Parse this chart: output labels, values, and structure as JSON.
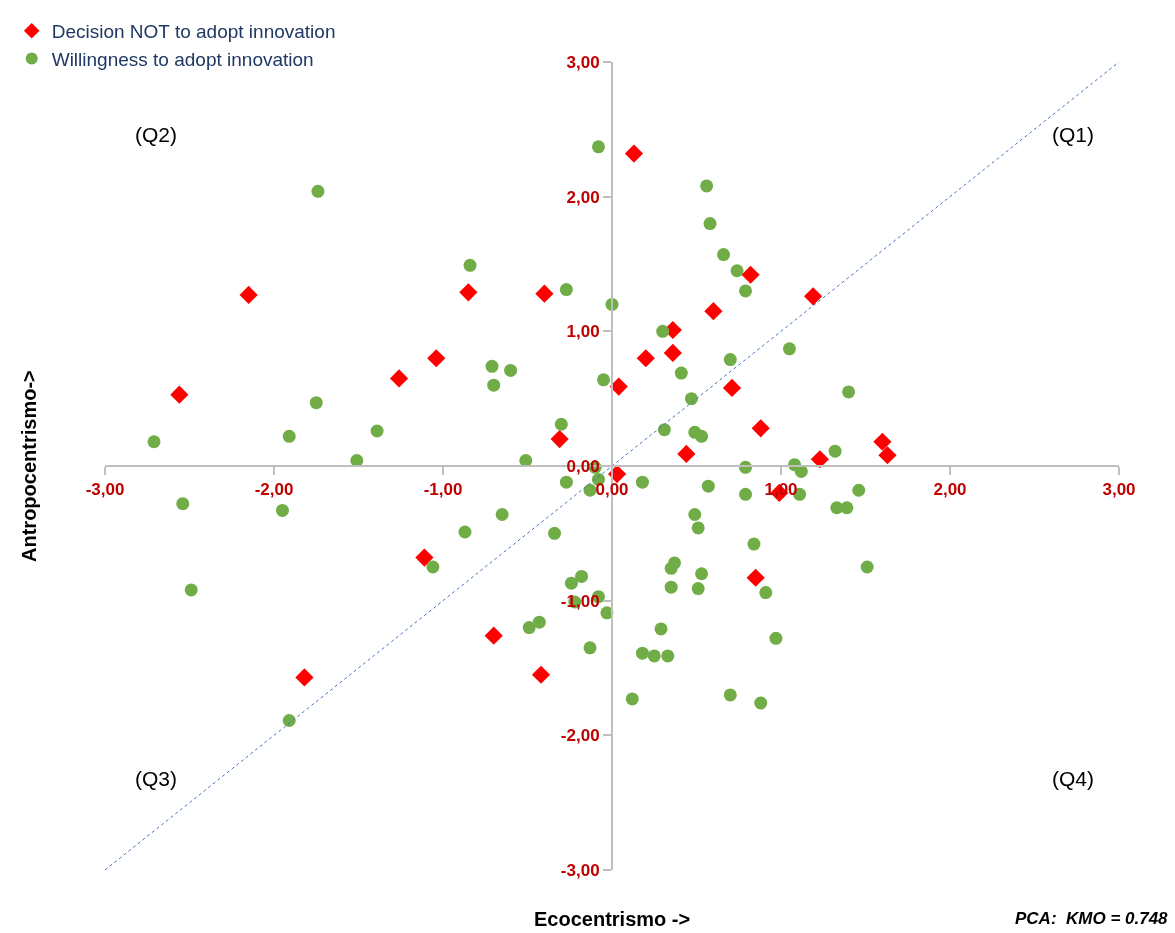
{
  "chart_data": {
    "type": "scatter",
    "xlabel": "Ecocentrismo ->",
    "ylabel": "Antropocentrismo->",
    "annotations": [
      "(Q2)",
      "(Q1)",
      "(Q3)",
      "(Q4)",
      "PCA:  KMO = 0.748"
    ],
    "xlim": [
      -3,
      3
    ],
    "ylim": [
      -3,
      3
    ],
    "xticks": [
      {
        "value": -3,
        "label": "-3,00"
      },
      {
        "value": -2,
        "label": "-2,00"
      },
      {
        "value": -1,
        "label": "-1,00"
      },
      {
        "value": 0,
        "label": "0,00"
      },
      {
        "value": 1,
        "label": "1,00"
      },
      {
        "value": 2,
        "label": "2,00"
      },
      {
        "value": 3,
        "label": "3,00"
      }
    ],
    "yticks": [
      {
        "value": -3,
        "label": "-3,00"
      },
      {
        "value": -2,
        "label": "-2,00"
      },
      {
        "value": -1,
        "label": "-1,00"
      },
      {
        "value": 0,
        "label": "0,00"
      },
      {
        "value": 1,
        "label": "1,00"
      },
      {
        "value": 2,
        "label": "2,00"
      },
      {
        "value": 3,
        "label": "3,00"
      }
    ],
    "legend": "top left",
    "series": [
      {
        "name": "Decision NOT to adopt innovation",
        "color": "#ff0000",
        "marker": "diamond",
        "x": [
          -2.15,
          -2.56,
          -0.85,
          -0.4,
          -1.04,
          -1.26,
          -0.31,
          0.13,
          0.82,
          1.19,
          0.6,
          0.36,
          0.36,
          0.2,
          0.04,
          0.71,
          0.88,
          0.44,
          1.6,
          1.63,
          1.23,
          0.03,
          0.99,
          0.85,
          -1.11,
          -0.7,
          -0.42,
          -1.82
        ],
        "values": [
          1.27,
          0.53,
          1.29,
          1.28,
          0.8,
          0.65,
          0.2,
          2.32,
          1.42,
          1.26,
          1.15,
          1.01,
          0.84,
          0.8,
          0.59,
          0.58,
          0.28,
          0.09,
          0.18,
          0.08,
          0.05,
          -0.06,
          -0.2,
          -0.83,
          -0.68,
          -1.26,
          -1.55,
          -1.57
        ]
      },
      {
        "name": "Willingness to adopt innovation",
        "color": "#70ad47",
        "marker": "circle",
        "x": [
          -0.08,
          -1.74,
          0.56,
          0.58,
          -0.84,
          -0.27,
          0.66,
          0.74,
          0.79,
          0.0,
          0.3,
          1.05,
          0.7,
          -0.71,
          -0.6,
          -0.7,
          -0.05,
          0.41,
          0.47,
          1.4,
          -1.75,
          -0.3,
          0.31,
          0.49,
          0.53,
          -1.39,
          -1.91,
          -2.71,
          -1.51,
          -0.51,
          -0.1,
          -0.08,
          -0.13,
          -0.27,
          0.79,
          1.08,
          1.12,
          1.32,
          0.18,
          0.57,
          0.79,
          1.11,
          1.46,
          1.33,
          1.39,
          -2.54,
          -1.95,
          -0.65,
          -0.87,
          -0.34,
          0.49,
          0.51,
          0.84,
          -1.06,
          -2.49,
          0.37,
          0.35,
          0.53,
          -0.18,
          -0.24,
          0.35,
          0.51,
          0.91,
          -0.08,
          -0.22,
          -0.03,
          -0.43,
          -0.49,
          0.29,
          1.51,
          0.97,
          -0.13,
          0.18,
          0.25,
          0.33,
          0.12,
          0.7,
          0.88,
          -1.91
        ],
        "values": [
          2.37,
          2.04,
          2.08,
          1.8,
          1.49,
          1.31,
          1.57,
          1.45,
          1.3,
          1.2,
          1.0,
          0.87,
          0.79,
          0.74,
          0.71,
          0.6,
          0.64,
          0.69,
          0.5,
          0.55,
          0.47,
          0.31,
          0.27,
          0.25,
          0.22,
          0.26,
          0.22,
          0.18,
          0.04,
          0.04,
          -0.01,
          -0.1,
          -0.18,
          -0.12,
          -0.01,
          0.01,
          -0.04,
          0.11,
          -0.12,
          -0.15,
          -0.21,
          -0.21,
          -0.18,
          -0.31,
          -0.31,
          -0.28,
          -0.33,
          -0.36,
          -0.49,
          -0.5,
          -0.36,
          -0.46,
          -0.58,
          -0.75,
          -0.92,
          -0.72,
          -0.76,
          -0.8,
          -0.82,
          -0.87,
          -0.9,
          -0.91,
          -0.94,
          -0.97,
          -1.01,
          -1.09,
          -1.16,
          -1.2,
          -1.21,
          -0.75,
          -1.28,
          -1.35,
          -1.39,
          -1.41,
          -1.41,
          -1.73,
          -1.7,
          -1.76,
          -1.89
        ]
      },
      {
        "type": "line",
        "color": "#4472c4",
        "line_style": "dotted",
        "marker": "none",
        "x": [
          -3,
          3
        ],
        "values": [
          -3,
          3
        ]
      }
    ]
  }
}
